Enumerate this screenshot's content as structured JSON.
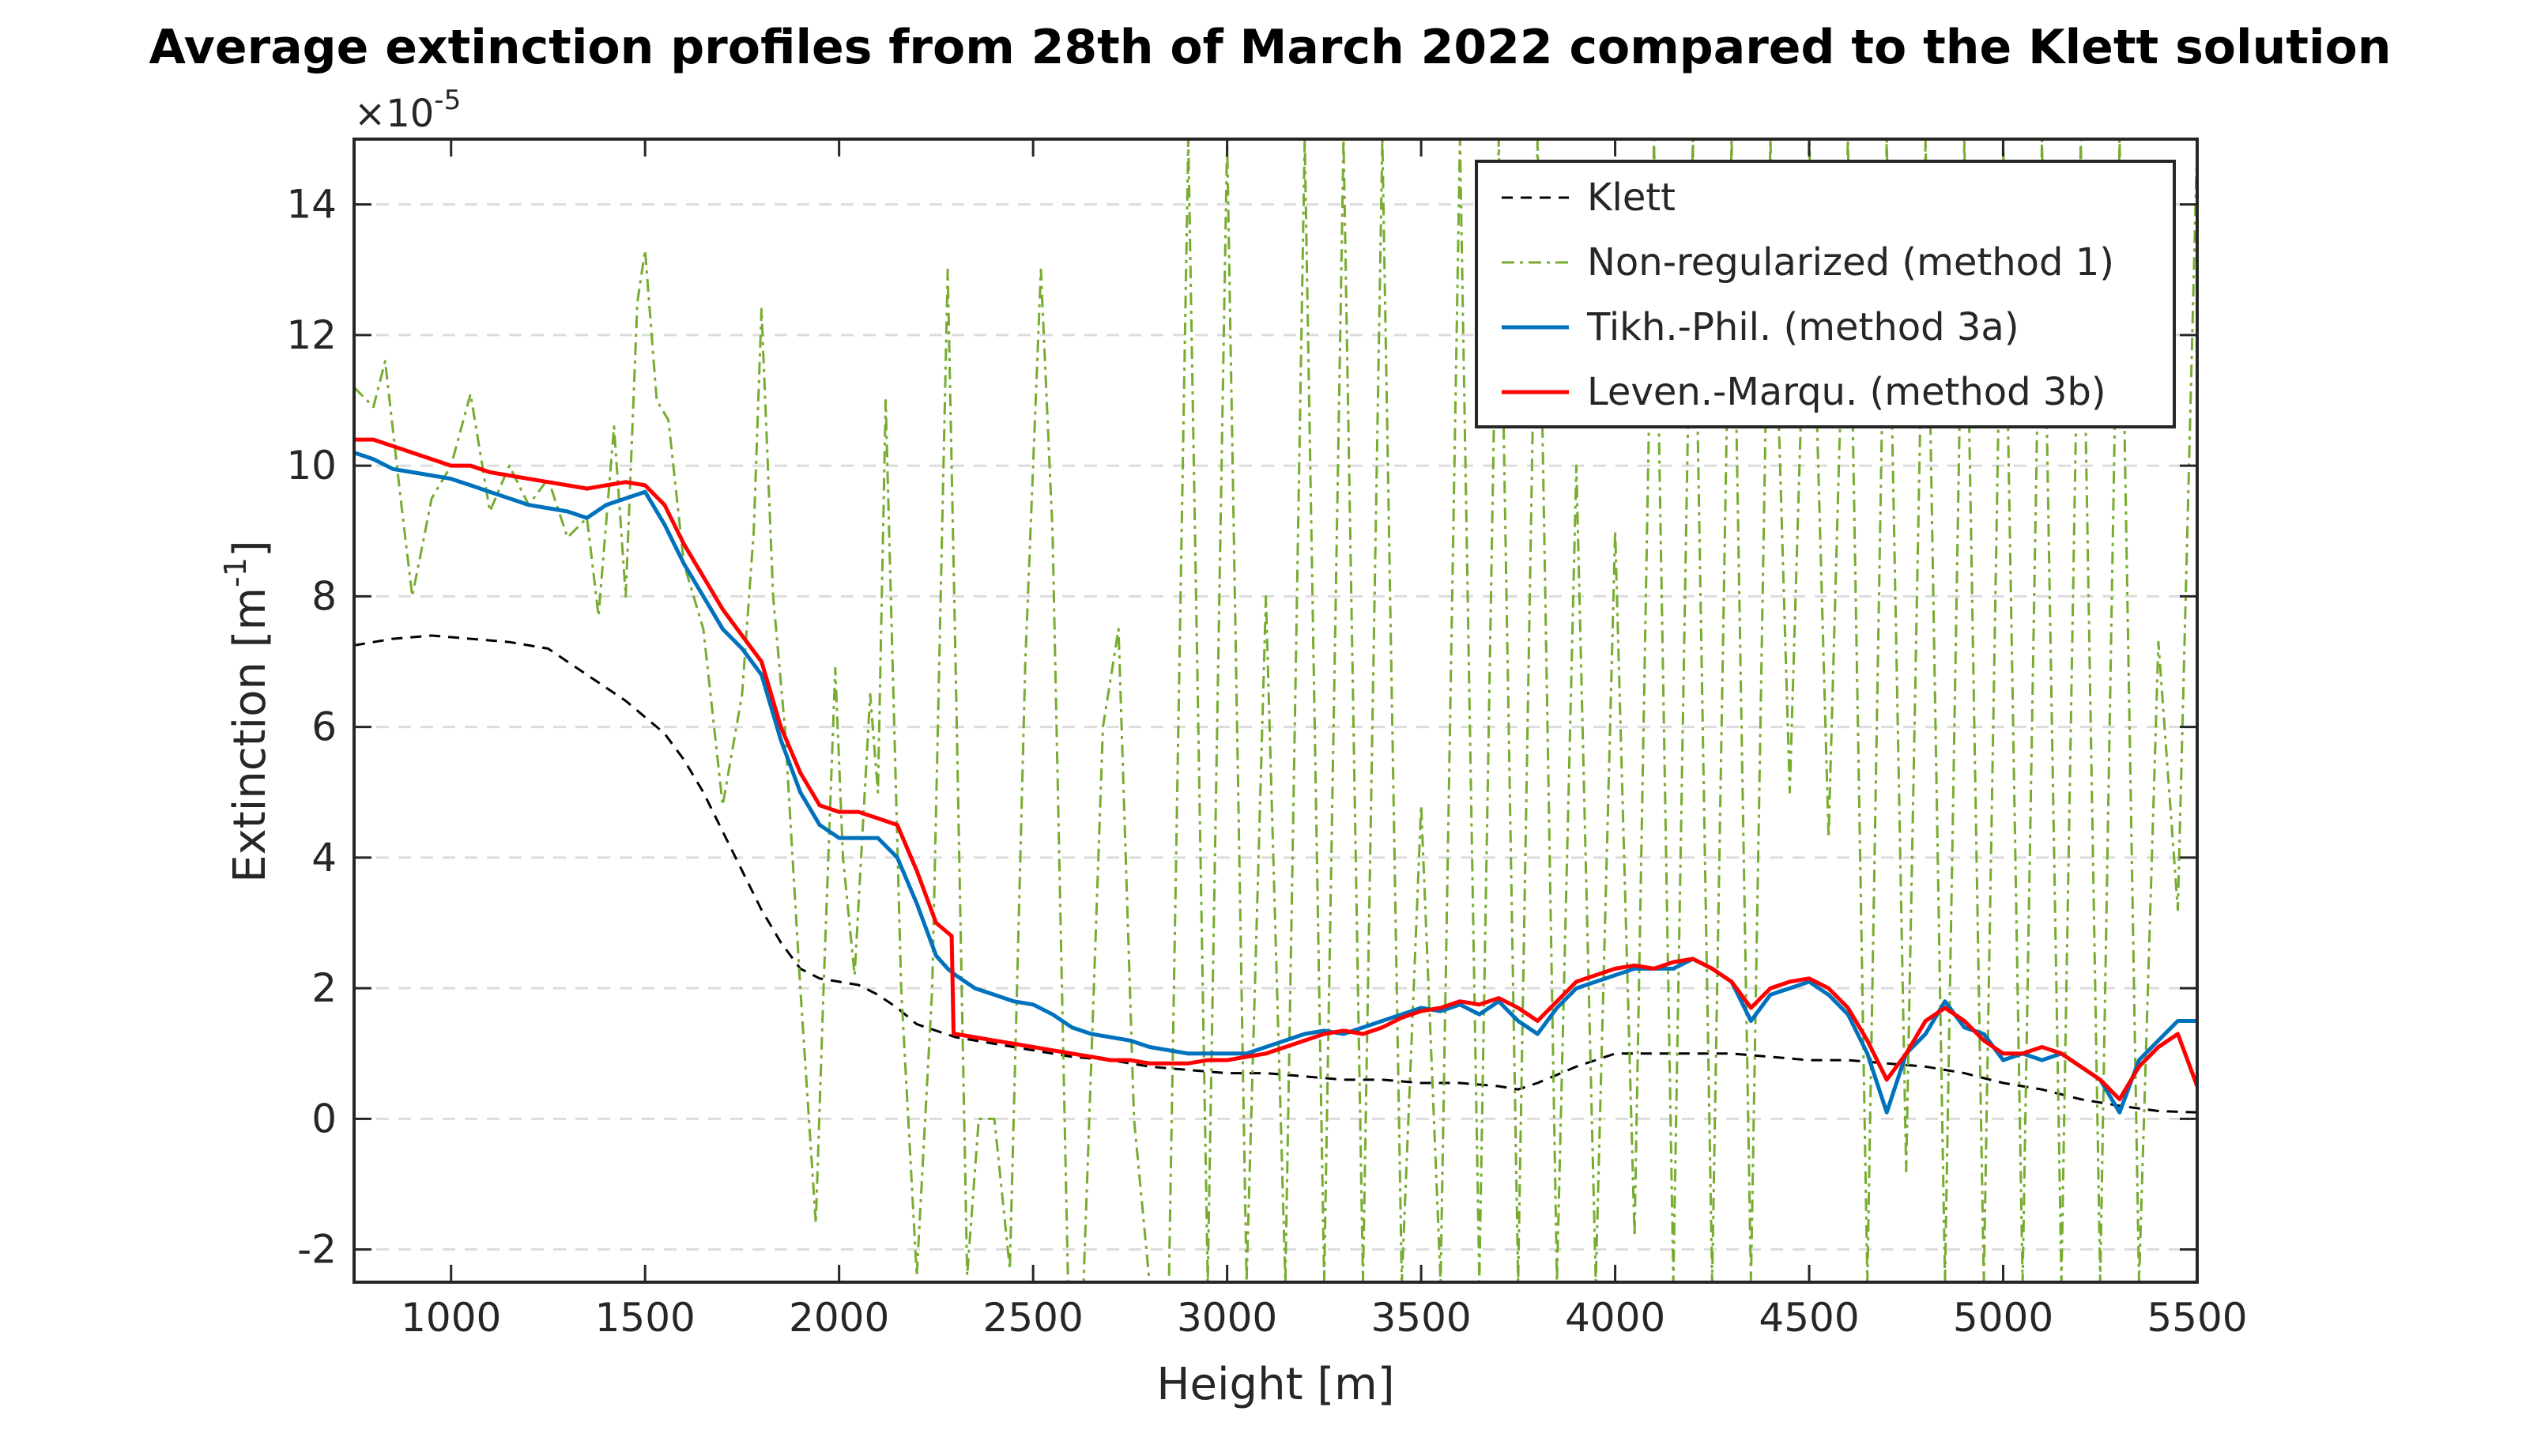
{
  "chart_data": {
    "type": "line",
    "title": "Average extinction profiles from 28th of March 2022 compared to the Klett solution",
    "xlabel": "Height [m]",
    "ylabel_main": "Extinction [m",
    "ylabel_sup": "-1",
    "ylabel_close": "]",
    "y_scale_base": "×10",
    "y_scale_exp": "-5",
    "xlim": [
      750,
      5500
    ],
    "ylim": [
      -2.5,
      15
    ],
    "xticks": [
      1000,
      1500,
      2000,
      2500,
      3000,
      3500,
      4000,
      4500,
      5000,
      5500
    ],
    "xtick_labels": [
      "1000",
      "1500",
      "2000",
      "2500",
      "3000",
      "3500",
      "4000",
      "4500",
      "5000",
      "5500"
    ],
    "yticks": [
      -2,
      0,
      2,
      4,
      6,
      8,
      10,
      12,
      14
    ],
    "ytick_labels": [
      "-2",
      "0",
      "2",
      "4",
      "6",
      "8",
      "10",
      "12",
      "14"
    ],
    "grid": "horizontal dashed",
    "legend_position": "top-right",
    "series": [
      {
        "name": "Klett",
        "color": "#000000",
        "style": "dashed",
        "x": [
          750,
          850,
          950,
          1050,
          1150,
          1250,
          1350,
          1450,
          1550,
          1600,
          1650,
          1700,
          1750,
          1800,
          1850,
          1900,
          1950,
          2000,
          2050,
          2100,
          2150,
          2200,
          2300,
          2400,
          2500,
          2600,
          2700,
          2800,
          2900,
          3000,
          3100,
          3200,
          3300,
          3400,
          3500,
          3600,
          3700,
          3750,
          3800,
          3900,
          4000,
          4100,
          4200,
          4300,
          4400,
          4500,
          4600,
          4700,
          4800,
          4900,
          5000,
          5100,
          5200,
          5300,
          5400,
          5500
        ],
        "values": [
          7.25,
          7.35,
          7.4,
          7.35,
          7.3,
          7.2,
          6.8,
          6.4,
          5.9,
          5.5,
          5.0,
          4.4,
          3.8,
          3.2,
          2.7,
          2.3,
          2.15,
          2.1,
          2.05,
          1.9,
          1.7,
          1.45,
          1.25,
          1.15,
          1.05,
          0.95,
          0.9,
          0.8,
          0.75,
          0.7,
          0.7,
          0.65,
          0.6,
          0.6,
          0.55,
          0.55,
          0.5,
          0.45,
          0.55,
          0.8,
          1.0,
          1.0,
          1.0,
          1.0,
          0.95,
          0.9,
          0.9,
          0.85,
          0.8,
          0.7,
          0.55,
          0.45,
          0.3,
          0.2,
          0.12,
          0.1
        ]
      },
      {
        "name": "Non-regularized (method 1)",
        "color": "#77AC30",
        "style": "dashdot",
        "x": [
          750,
          800,
          830,
          870,
          900,
          950,
          1000,
          1050,
          1100,
          1150,
          1200,
          1250,
          1300,
          1350,
          1380,
          1420,
          1450,
          1480,
          1500,
          1530,
          1560,
          1600,
          1650,
          1700,
          1750,
          1780,
          1800,
          1830,
          1860,
          1900,
          1940,
          1960,
          1990,
          2010,
          2040,
          2080,
          2100,
          2120,
          2160,
          2200,
          2240,
          2280,
          2300,
          2330,
          2360,
          2400,
          2440,
          2480,
          2520,
          2550,
          2590,
          2630,
          2680,
          2720,
          2760,
          2800,
          2850,
          2900,
          2950,
          3000,
          3050,
          3100,
          3150,
          3200,
          3250,
          3300,
          3350,
          3400,
          3450,
          3500,
          3550,
          3600,
          3650,
          3700,
          3750,
          3800,
          3850,
          3900,
          3950,
          4000,
          4050,
          4100,
          4150,
          4200,
          4250,
          4300,
          4350,
          4400,
          4450,
          4500,
          4550,
          4600,
          4650,
          4700,
          4750,
          4800,
          4850,
          4900,
          4950,
          5000,
          5050,
          5100,
          5150,
          5200,
          5250,
          5300,
          5350,
          5400,
          5450,
          5500
        ],
        "values": [
          11.2,
          10.9,
          11.6,
          9.5,
          8.0,
          9.5,
          10.0,
          11.1,
          9.3,
          10.0,
          9.4,
          9.8,
          8.9,
          9.2,
          7.7,
          10.6,
          8.0,
          12.5,
          13.3,
          11.0,
          10.7,
          8.5,
          7.5,
          4.8,
          6.5,
          9.0,
          12.4,
          8.0,
          6.0,
          2.0,
          -1.6,
          2.0,
          6.9,
          4.0,
          2.2,
          6.5,
          5.0,
          11.0,
          2.0,
          -2.4,
          2.0,
          13.0,
          7.0,
          -2.4,
          0.0,
          0.0,
          -2.3,
          7.0,
          13.0,
          9.0,
          -2.5,
          -2.5,
          6.0,
          7.5,
          0.0,
          -2.5,
          -2.5,
          15,
          -2.5,
          15,
          -2.5,
          8.0,
          -2.5,
          15,
          -2.5,
          15,
          -2.5,
          15,
          -2.5,
          4.8,
          -2.5,
          15,
          -2.5,
          15,
          -2.5,
          15,
          -2.5,
          10,
          -2.5,
          9.0,
          -1.8,
          15,
          -2.5,
          15,
          -2.5,
          15,
          -2.5,
          15,
          5.0,
          15,
          4.3,
          15,
          -2.5,
          15,
          -0.8,
          15,
          -2.5,
          15,
          -2.5,
          15,
          -2.5,
          15,
          -2.5,
          15,
          -2.5,
          15,
          -2.5,
          7.3,
          3.2,
          15
        ]
      },
      {
        "name": "Tikh.-Phil. (method 3a)",
        "color": "#0072BD",
        "style": "solid",
        "x": [
          750,
          800,
          850,
          900,
          950,
          1000,
          1050,
          1100,
          1150,
          1200,
          1250,
          1300,
          1350,
          1400,
          1450,
          1500,
          1550,
          1600,
          1650,
          1700,
          1750,
          1800,
          1850,
          1900,
          1950,
          2000,
          2050,
          2100,
          2150,
          2200,
          2250,
          2280,
          2300,
          2350,
          2400,
          2450,
          2500,
          2550,
          2600,
          2650,
          2700,
          2750,
          2800,
          2850,
          2900,
          2950,
          3000,
          3050,
          3100,
          3150,
          3200,
          3250,
          3300,
          3350,
          3400,
          3450,
          3500,
          3550,
          3600,
          3650,
          3700,
          3750,
          3800,
          3850,
          3900,
          3950,
          4000,
          4050,
          4100,
          4150,
          4200,
          4250,
          4300,
          4350,
          4400,
          4450,
          4500,
          4550,
          4600,
          4650,
          4700,
          4750,
          4800,
          4850,
          4900,
          4950,
          5000,
          5050,
          5100,
          5150,
          5200,
          5250,
          5300,
          5350,
          5400,
          5450,
          5500
        ],
        "values": [
          10.2,
          10.1,
          9.95,
          9.9,
          9.85,
          9.8,
          9.7,
          9.6,
          9.5,
          9.4,
          9.35,
          9.3,
          9.2,
          9.4,
          9.5,
          9.6,
          9.1,
          8.5,
          8.0,
          7.5,
          7.2,
          6.8,
          5.8,
          5.0,
          4.5,
          4.3,
          4.3,
          4.3,
          4.0,
          3.3,
          2.5,
          2.3,
          2.2,
          2.0,
          1.9,
          1.8,
          1.75,
          1.6,
          1.4,
          1.3,
          1.25,
          1.2,
          1.1,
          1.05,
          1.0,
          1.0,
          1.0,
          1.0,
          1.1,
          1.2,
          1.3,
          1.35,
          1.3,
          1.4,
          1.5,
          1.6,
          1.7,
          1.65,
          1.75,
          1.6,
          1.8,
          1.5,
          1.3,
          1.7,
          2.0,
          2.1,
          2.2,
          2.3,
          2.3,
          2.3,
          2.45,
          2.3,
          2.1,
          1.5,
          1.9,
          2.0,
          2.1,
          1.9,
          1.6,
          1.0,
          0.1,
          1.0,
          1.3,
          1.8,
          1.4,
          1.3,
          0.9,
          1.0,
          0.9,
          1.0,
          0.8,
          0.6,
          0.1,
          0.9,
          1.2,
          1.5,
          1.5
        ]
      },
      {
        "name": "Leven.-Marqu. (method 3b)",
        "color": "#FF0000",
        "style": "solid",
        "x": [
          750,
          800,
          850,
          900,
          950,
          1000,
          1050,
          1100,
          1150,
          1200,
          1250,
          1300,
          1350,
          1400,
          1450,
          1500,
          1550,
          1600,
          1650,
          1700,
          1750,
          1800,
          1850,
          1900,
          1950,
          2000,
          2050,
          2100,
          2150,
          2200,
          2250,
          2290,
          2295,
          2300,
          2350,
          2400,
          2450,
          2500,
          2550,
          2600,
          2650,
          2700,
          2750,
          2800,
          2850,
          2900,
          2950,
          3000,
          3050,
          3100,
          3150,
          3200,
          3250,
          3300,
          3350,
          3400,
          3450,
          3500,
          3550,
          3600,
          3650,
          3700,
          3750,
          3800,
          3850,
          3900,
          3950,
          4000,
          4050,
          4100,
          4150,
          4200,
          4250,
          4300,
          4350,
          4400,
          4450,
          4500,
          4550,
          4600,
          4650,
          4700,
          4750,
          4800,
          4850,
          4900,
          4950,
          5000,
          5050,
          5100,
          5150,
          5200,
          5250,
          5300,
          5350,
          5400,
          5450,
          5500
        ],
        "values": [
          10.4,
          10.4,
          10.3,
          10.2,
          10.1,
          10.0,
          10.0,
          9.9,
          9.85,
          9.8,
          9.75,
          9.7,
          9.65,
          9.7,
          9.75,
          9.7,
          9.4,
          8.8,
          8.3,
          7.8,
          7.4,
          7.0,
          6.0,
          5.3,
          4.8,
          4.7,
          4.7,
          4.6,
          4.5,
          3.8,
          3.0,
          2.8,
          1.3,
          1.3,
          1.25,
          1.2,
          1.15,
          1.1,
          1.05,
          1.0,
          0.95,
          0.9,
          0.9,
          0.85,
          0.85,
          0.85,
          0.9,
          0.9,
          0.95,
          1.0,
          1.1,
          1.2,
          1.3,
          1.35,
          1.3,
          1.4,
          1.55,
          1.65,
          1.7,
          1.8,
          1.75,
          1.85,
          1.7,
          1.5,
          1.8,
          2.1,
          2.2,
          2.3,
          2.35,
          2.3,
          2.4,
          2.45,
          2.3,
          2.1,
          1.7,
          2.0,
          2.1,
          2.15,
          2.0,
          1.7,
          1.2,
          0.6,
          1.0,
          1.5,
          1.7,
          1.5,
          1.2,
          1.0,
          1.0,
          1.1,
          1.0,
          0.8,
          0.6,
          0.3,
          0.8,
          1.1,
          1.3,
          0.5
        ]
      }
    ]
  }
}
